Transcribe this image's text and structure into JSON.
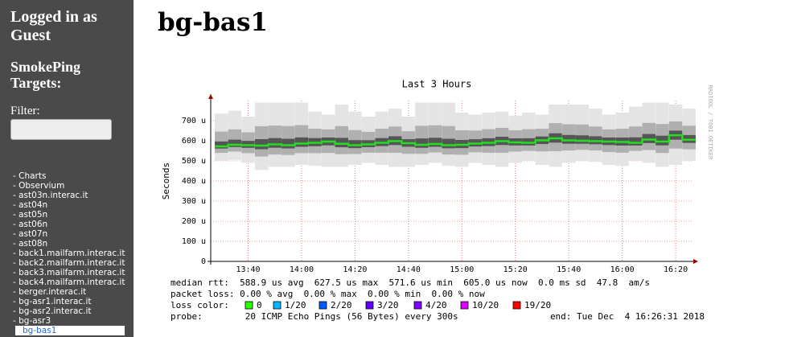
{
  "sidebar": {
    "login": "Logged in as Guest",
    "heading": "SmokePing Targets:",
    "filter_label": "Filter:",
    "targets": [
      "- Charts",
      "- Observium",
      "- ast03n.interac.it",
      "- ast04n",
      "- ast05n",
      "- ast06n",
      "- ast07n",
      "- ast08n",
      "- back1.mailfarm.interac.it",
      "- back2.mailfarm.interac.it",
      "- back3.mailfarm.interac.it",
      "- back4.mailfarm.interac.it",
      "- berger.interac.it",
      "- bg-asr1.interac.it",
      "- bg-asr2.interac.it",
      "- bg-asr3"
    ],
    "selected": "bg-bas1"
  },
  "page_title": "bg-bas1",
  "chart_data": {
    "type": "smoke",
    "title": "Last 3 Hours",
    "y_label": "Seconds",
    "side_note": "RRDTOOL / TOBI OETIKER",
    "xlim": [
      806,
      986
    ],
    "xticks": [
      {
        "value": 820,
        "label": "13:40"
      },
      {
        "value": 840,
        "label": "14:00"
      },
      {
        "value": 860,
        "label": "14:20"
      },
      {
        "value": 880,
        "label": "14:40"
      },
      {
        "value": 900,
        "label": "15:00"
      },
      {
        "value": 920,
        "label": "15:20"
      },
      {
        "value": 940,
        "label": "15:40"
      },
      {
        "value": 960,
        "label": "16:00"
      },
      {
        "value": 980,
        "label": "16:20"
      }
    ],
    "ylim": [
      0,
      800
    ],
    "yticks": [
      0,
      {
        "value": 100,
        "label": "100 u"
      },
      {
        "value": 200,
        "label": "200 u"
      },
      {
        "value": 300,
        "label": "300 u"
      },
      {
        "value": 400,
        "label": "400 u"
      },
      {
        "value": 500,
        "label": "500 u"
      },
      {
        "value": 600,
        "label": "600 u"
      },
      {
        "value": 700,
        "label": "700 u"
      }
    ],
    "grid": true,
    "x": [
      810,
      815,
      820,
      825,
      830,
      835,
      840,
      845,
      850,
      855,
      860,
      865,
      870,
      875,
      880,
      885,
      890,
      895,
      900,
      905,
      910,
      915,
      920,
      925,
      930,
      935,
      940,
      945,
      950,
      955,
      960,
      965,
      970,
      975,
      980,
      985
    ],
    "series": [
      {
        "name": "median rtt",
        "color": "#22dd22",
        "values": [
          572,
          580,
          578,
          576,
          582,
          578,
          586,
          590,
          596,
          585,
          578,
          582,
          590,
          598,
          588,
          580,
          584,
          578,
          580,
          586,
          590,
          598,
          592,
          590,
          602,
          612,
          602,
          600,
          598,
          596,
          594,
          590,
          606,
          596,
          627.5,
          605
        ]
      }
    ],
    "smoke_min": [
      500,
      505,
      490,
      455,
      470,
      470,
      480,
      475,
      470,
      470,
      480,
      490,
      480,
      470,
      470,
      480,
      490,
      475,
      470,
      490,
      480,
      470,
      490,
      500,
      480,
      470,
      490,
      500,
      495,
      480,
      475,
      500,
      490,
      470,
      480,
      500
    ],
    "smoke_max": [
      735,
      750,
      720,
      790,
      790,
      790,
      790,
      745,
      730,
      780,
      745,
      720,
      745,
      760,
      720,
      790,
      790,
      790,
      740,
      730,
      740,
      745,
      725,
      740,
      730,
      780,
      780,
      780,
      760,
      730,
      740,
      770,
      790,
      790,
      780,
      760
    ],
    "legend_lines": [
      "median rtt:  588.9 us avg  627.5 us max  571.6 us min  605.0 us now  0.0 ms sd  47.8  am/s",
      "packet loss: 0.00 % avg  0.00 % max  0.00 % min  0.00 % now"
    ],
    "loss_label": "loss color:",
    "loss_colors": [
      {
        "label": "0",
        "color": "#26ff00"
      },
      {
        "label": "1/20",
        "color": "#00b8ff"
      },
      {
        "label": "2/20",
        "color": "#0059ff"
      },
      {
        "label": "3/20",
        "color": "#5e00ff"
      },
      {
        "label": "4/20",
        "color": "#7e00ff"
      },
      {
        "label": "10/20",
        "color": "#dd00ff"
      },
      {
        "label": "19/20",
        "color": "#ff0000"
      }
    ],
    "probe": "probe:        20 ICMP Echo Pings (56 Bytes) every 300s",
    "end": "end: Tue Dec  4 16:26:31 2018"
  }
}
